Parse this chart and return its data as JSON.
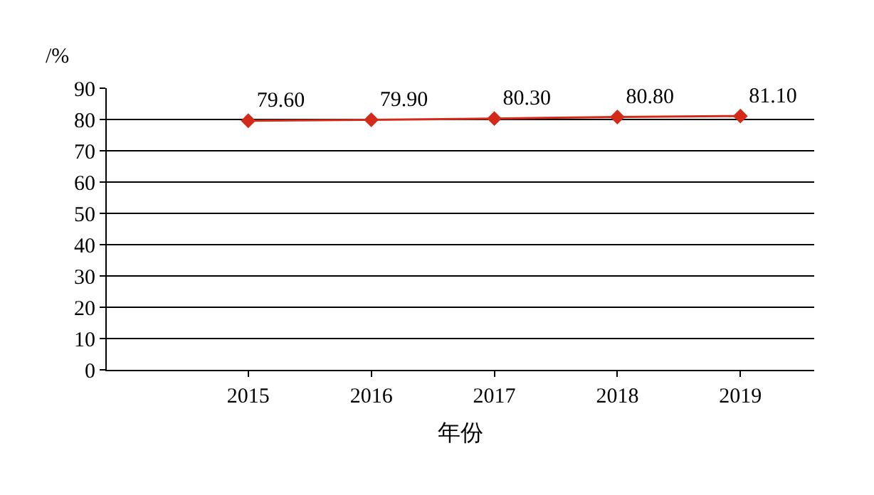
{
  "chart_data": {
    "type": "line",
    "xlabel": "年份",
    "ylabel": "/%",
    "x": [
      2015,
      2016,
      2017,
      2018,
      2019
    ],
    "xlim": [
      2013.85,
      2019.6
    ],
    "xticks": [
      2015,
      2016,
      2017,
      2018,
      2019
    ],
    "ylim": [
      0,
      90
    ],
    "yticks": [
      0,
      10,
      20,
      30,
      40,
      50,
      60,
      70,
      80,
      90
    ],
    "series": [
      {
        "color": "#d42a1a",
        "values": [
          79.6,
          79.9,
          80.3,
          80.8,
          81.1
        ]
      }
    ],
    "value_labels": [
      "79.60",
      "79.90",
      "80.30",
      "80.80",
      "81.10"
    ],
    "marker": "diamond",
    "line_style": "solid",
    "grid": "y",
    "legend": false
  }
}
